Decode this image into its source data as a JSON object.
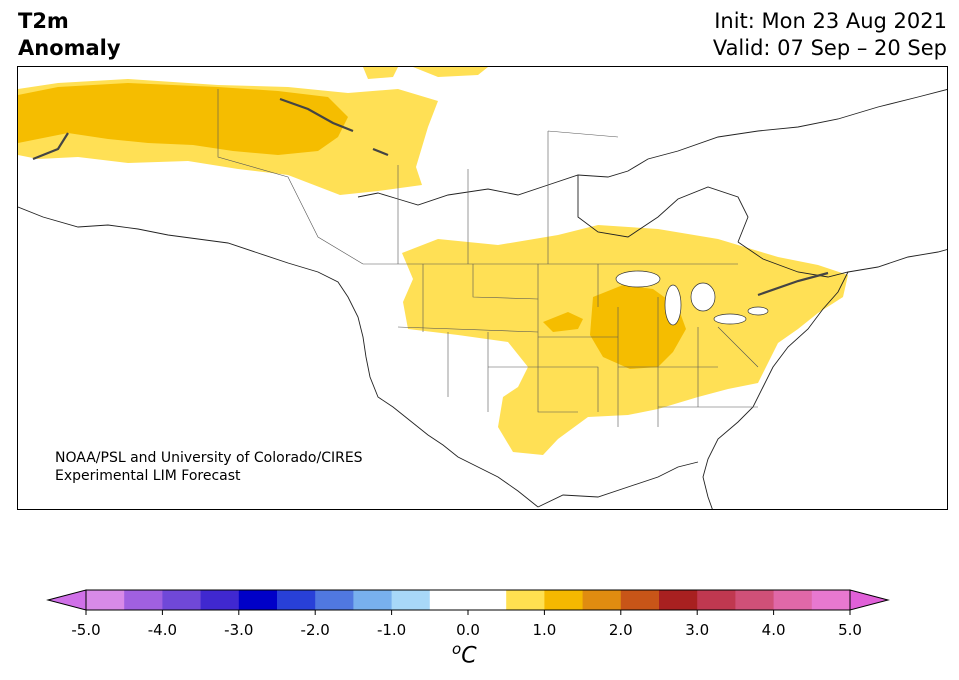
{
  "title": {
    "line1": "T2m",
    "line2": "Anomaly"
  },
  "dates": {
    "init": "Init: Mon 23 Aug 2021",
    "valid": "Valid: 07 Sep – 20 Sep"
  },
  "credit": {
    "line1": "NOAA/PSL and University of Colorado/CIRES",
    "line2": "Experimental LIM Forecast"
  },
  "colorbar": {
    "unit_prefix": "o",
    "unit": "C",
    "ticks": [
      "-5.0",
      "-4.0",
      "-3.0",
      "-2.0",
      "-1.0",
      "0.0",
      "1.0",
      "2.0",
      "3.0",
      "4.0",
      "5.0"
    ],
    "colors": [
      "#d88ae8",
      "#a060e0",
      "#7048d8",
      "#4028d0",
      "#0000c8",
      "#2840d8",
      "#5078e0",
      "#78b0ee",
      "#a8d8f8",
      "#ffffff",
      "#ffffff",
      "#ffe050",
      "#f5b800",
      "#e08c10",
      "#c85518",
      "#a82020",
      "#c03850",
      "#d05078",
      "#e068a8",
      "#e878d0"
    ],
    "under_color": "#d070e8",
    "over_color": "#e060d8"
  },
  "anomaly_colors": {
    "light": "#ffe055",
    "medium": "#f5bd00"
  }
}
